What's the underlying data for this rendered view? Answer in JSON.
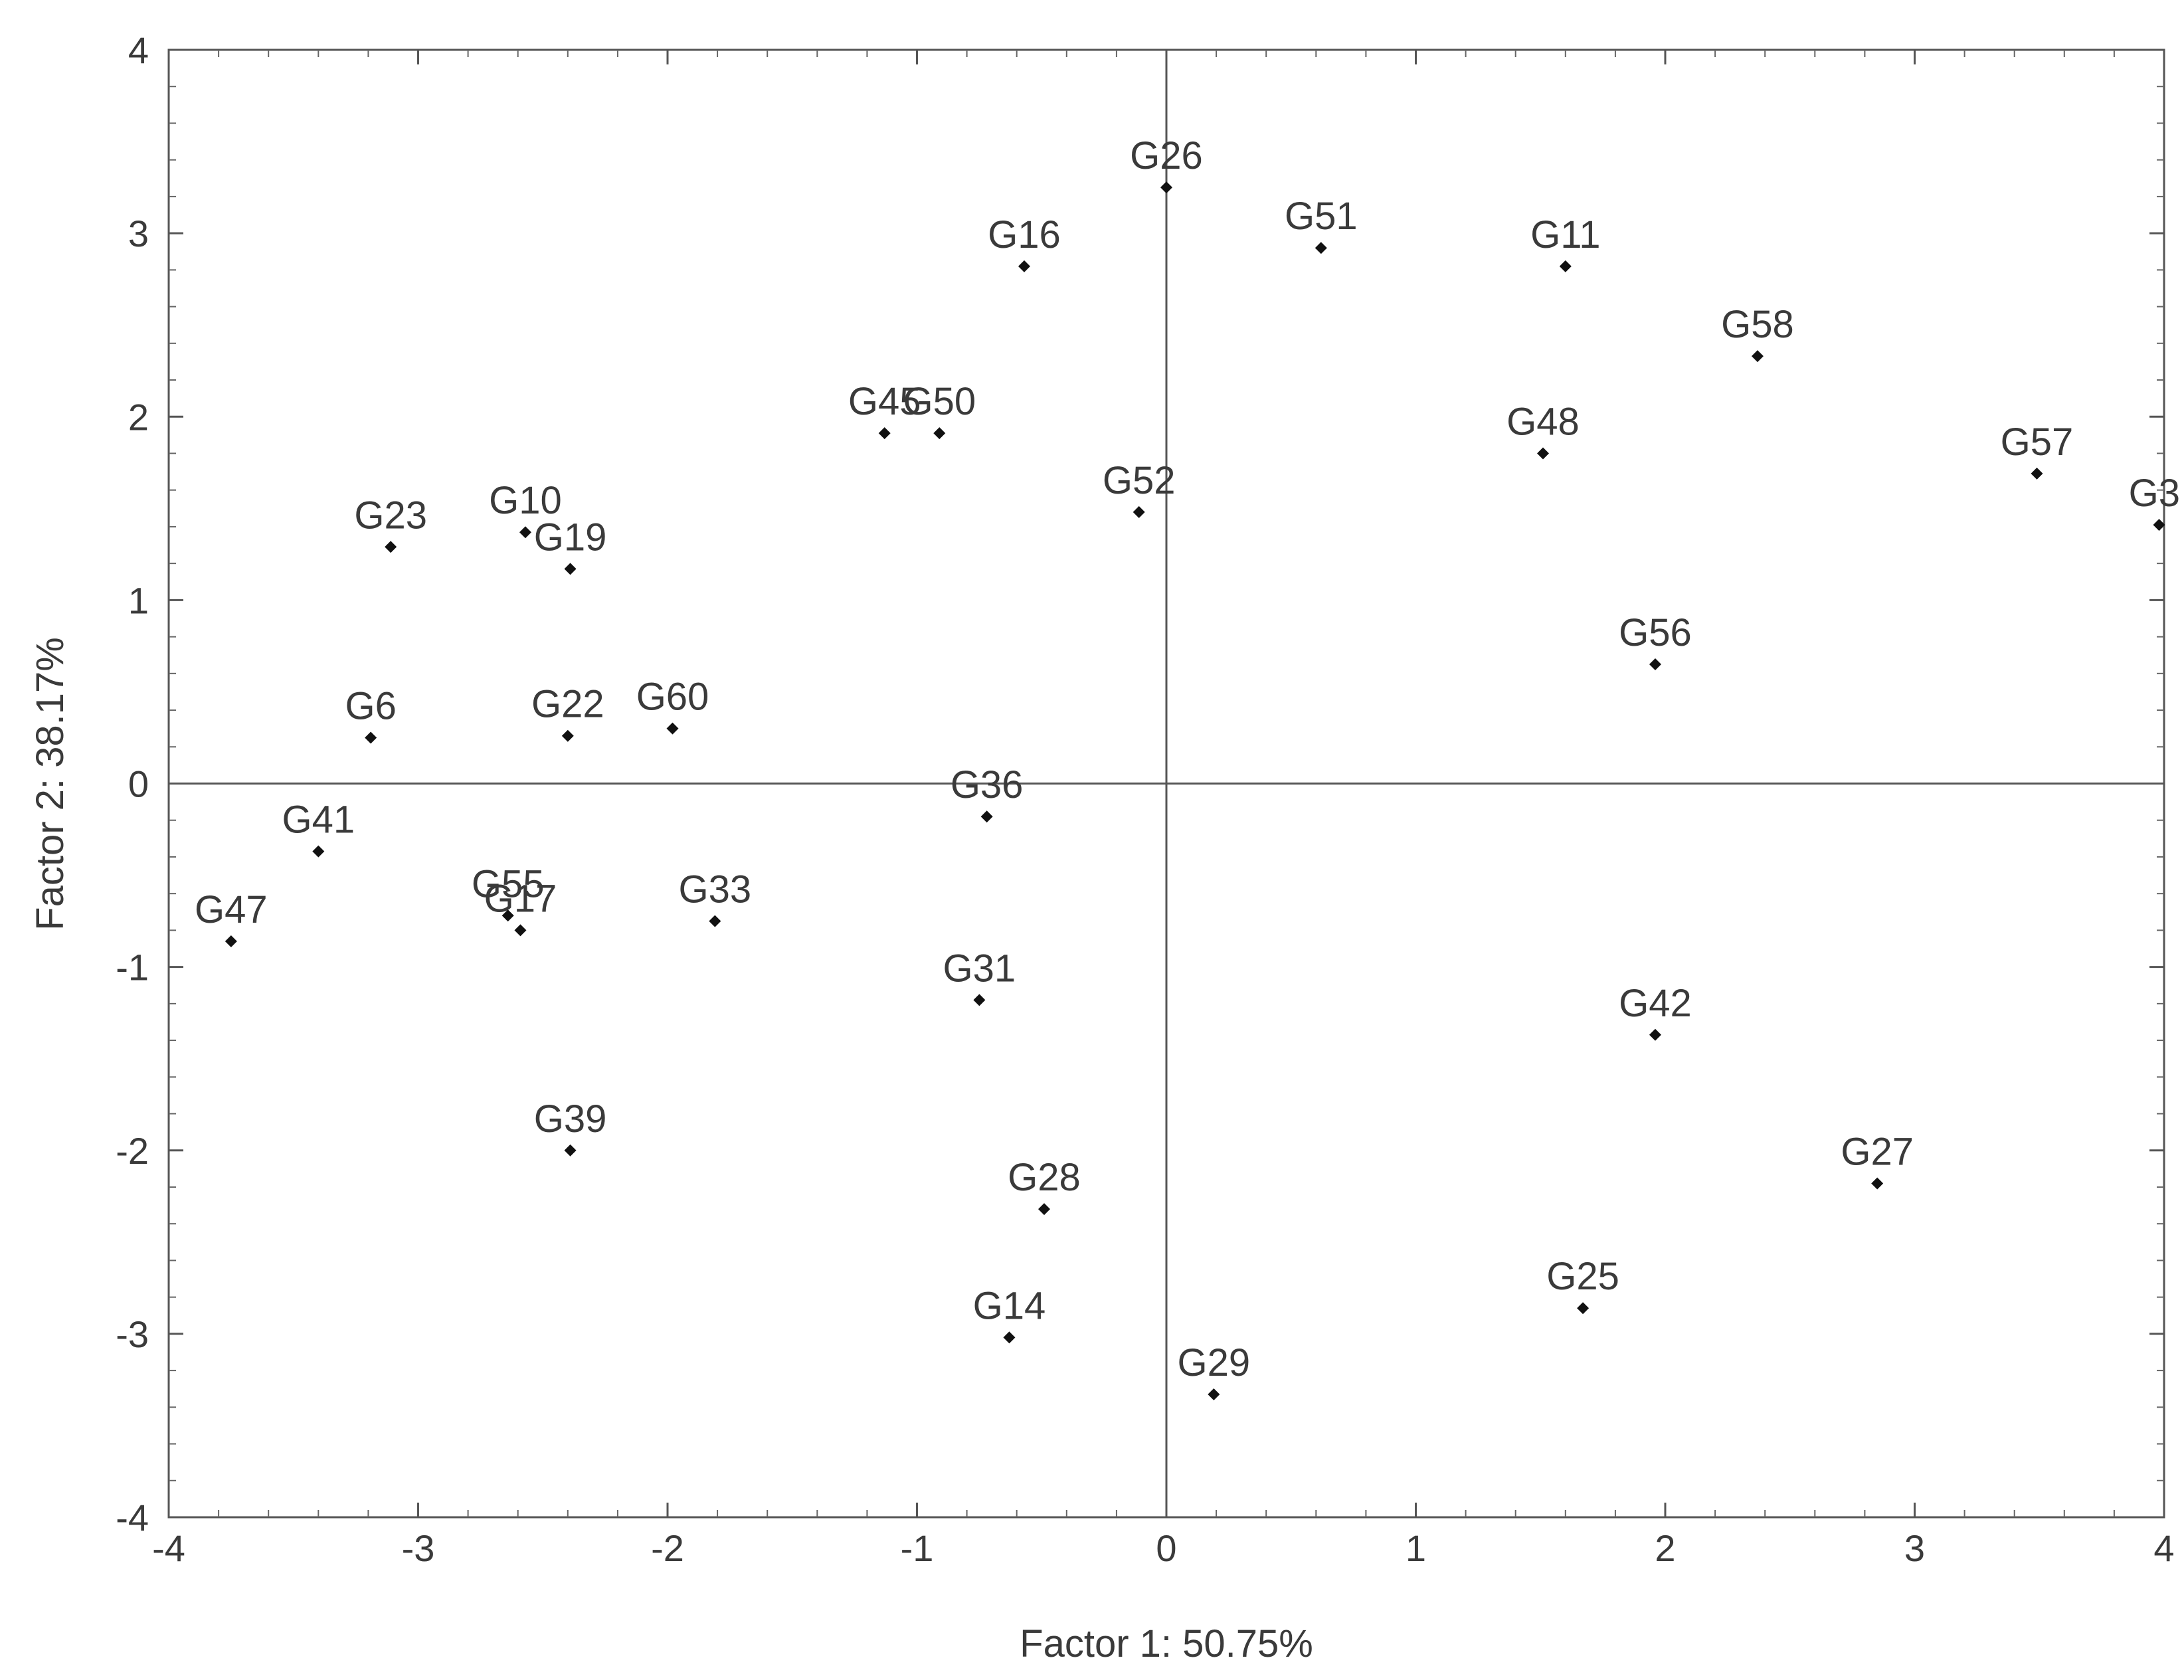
{
  "chart_data": {
    "type": "scatter",
    "title": "",
    "xlabel": "Factor 1: 50.75%",
    "ylabel": "Factor 2: 38.17%",
    "xlim": [
      -4,
      4
    ],
    "ylim": [
      -4,
      4
    ],
    "x_ticks": [
      -4,
      -3,
      -2,
      -1,
      0,
      1,
      2,
      3,
      4
    ],
    "y_ticks": [
      -4,
      -3,
      -2,
      -1,
      0,
      1,
      2,
      3,
      4
    ],
    "grid": false,
    "reference_lines": {
      "x": 0,
      "y": 0
    },
    "marker_color": "#111111",
    "points": [
      {
        "label": "G26",
        "x": 0.0,
        "y": 3.25
      },
      {
        "label": "G16",
        "x": -0.57,
        "y": 2.82
      },
      {
        "label": "G51",
        "x": 0.62,
        "y": 2.92
      },
      {
        "label": "G11",
        "x": 1.6,
        "y": 2.82
      },
      {
        "label": "G58",
        "x": 2.37,
        "y": 2.33
      },
      {
        "label": "G45",
        "x": -1.13,
        "y": 1.91
      },
      {
        "label": "G50",
        "x": -0.91,
        "y": 1.91
      },
      {
        "label": "G48",
        "x": 1.51,
        "y": 1.8
      },
      {
        "label": "G52",
        "x": -0.11,
        "y": 1.48
      },
      {
        "label": "G57",
        "x": 3.49,
        "y": 1.69
      },
      {
        "label": "G3",
        "x": 3.98,
        "y": 1.41
      },
      {
        "label": "G23",
        "x": -3.11,
        "y": 1.29
      },
      {
        "label": "G10",
        "x": -2.57,
        "y": 1.37
      },
      {
        "label": "G19",
        "x": -2.39,
        "y": 1.17
      },
      {
        "label": "G56",
        "x": 1.96,
        "y": 0.65
      },
      {
        "label": "G6",
        "x": -3.19,
        "y": 0.25
      },
      {
        "label": "G22",
        "x": -2.4,
        "y": 0.26
      },
      {
        "label": "G60",
        "x": -1.98,
        "y": 0.3
      },
      {
        "label": "G36",
        "x": -0.72,
        "y": -0.18
      },
      {
        "label": "G41",
        "x": -3.4,
        "y": -0.37
      },
      {
        "label": "G55",
        "x": -2.64,
        "y": -0.72
      },
      {
        "label": "G17",
        "x": -2.59,
        "y": -0.8
      },
      {
        "label": "G33",
        "x": -1.81,
        "y": -0.75
      },
      {
        "label": "G47",
        "x": -3.75,
        "y": -0.86
      },
      {
        "label": "G31",
        "x": -0.75,
        "y": -1.18
      },
      {
        "label": "G42",
        "x": 1.96,
        "y": -1.37
      },
      {
        "label": "G39",
        "x": -2.39,
        "y": -2.0
      },
      {
        "label": "G28",
        "x": -0.49,
        "y": -2.32
      },
      {
        "label": "G27",
        "x": 2.85,
        "y": -2.18
      },
      {
        "label": "G14",
        "x": -0.63,
        "y": -3.02
      },
      {
        "label": "G25",
        "x": 1.67,
        "y": -2.86
      },
      {
        "label": "G29",
        "x": 0.19,
        "y": -3.33
      }
    ]
  }
}
